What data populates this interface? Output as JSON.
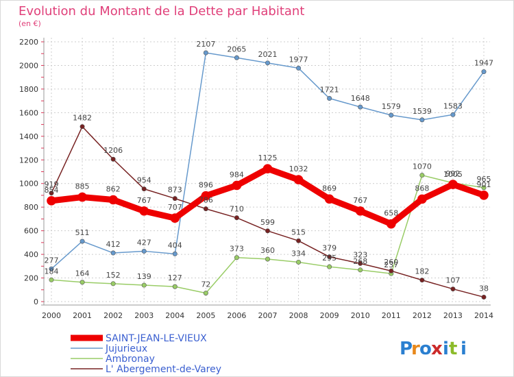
{
  "chart_data": {
    "type": "line",
    "title": "Evolution du Montant de la Dette par Habitant",
    "subtitle": "(en €)",
    "xlabel": "",
    "ylabel": "",
    "ylim": [
      0,
      2200
    ],
    "y_ticks": [
      0,
      200,
      400,
      600,
      800,
      1000,
      1200,
      1400,
      1600,
      1800,
      2000,
      2200
    ],
    "x": [
      "2000",
      "2001",
      "2002",
      "2003",
      "2004",
      "2005",
      "2006",
      "2007",
      "2008",
      "2009",
      "2010",
      "2011",
      "2012",
      "2013",
      "2014"
    ],
    "grid": true,
    "legend_position": "bottom-left",
    "series": [
      {
        "name": "SAINT-JEAN-LE-VIEUX",
        "color": "#ee0000",
        "width": 9,
        "values": [
          854,
          885,
          862,
          767,
          707,
          896,
          984,
          1125,
          1032,
          869,
          767,
          658,
          868,
          992,
          901
        ]
      },
      {
        "name": "Jujurieux",
        "color": "#6699cc",
        "width": 1.5,
        "values": [
          277,
          511,
          412,
          427,
          404,
          2107,
          2065,
          2021,
          1977,
          1721,
          1648,
          1579,
          1539,
          1583,
          1947
        ]
      },
      {
        "name": "Ambronay",
        "color": "#99cc66",
        "width": 1.5,
        "values": [
          184,
          164,
          152,
          139,
          127,
          72,
          373,
          360,
          334,
          295,
          268,
          237,
          1070,
          1005,
          965
        ]
      },
      {
        "name": "L' Abergement-de-Varey",
        "color": "#772222",
        "width": 1.5,
        "values": [
          919,
          1482,
          1206,
          954,
          873,
          786,
          710,
          599,
          515,
          379,
          323,
          260,
          182,
          107,
          38
        ]
      }
    ]
  },
  "branding": {
    "logo_text": "Proxiti"
  }
}
